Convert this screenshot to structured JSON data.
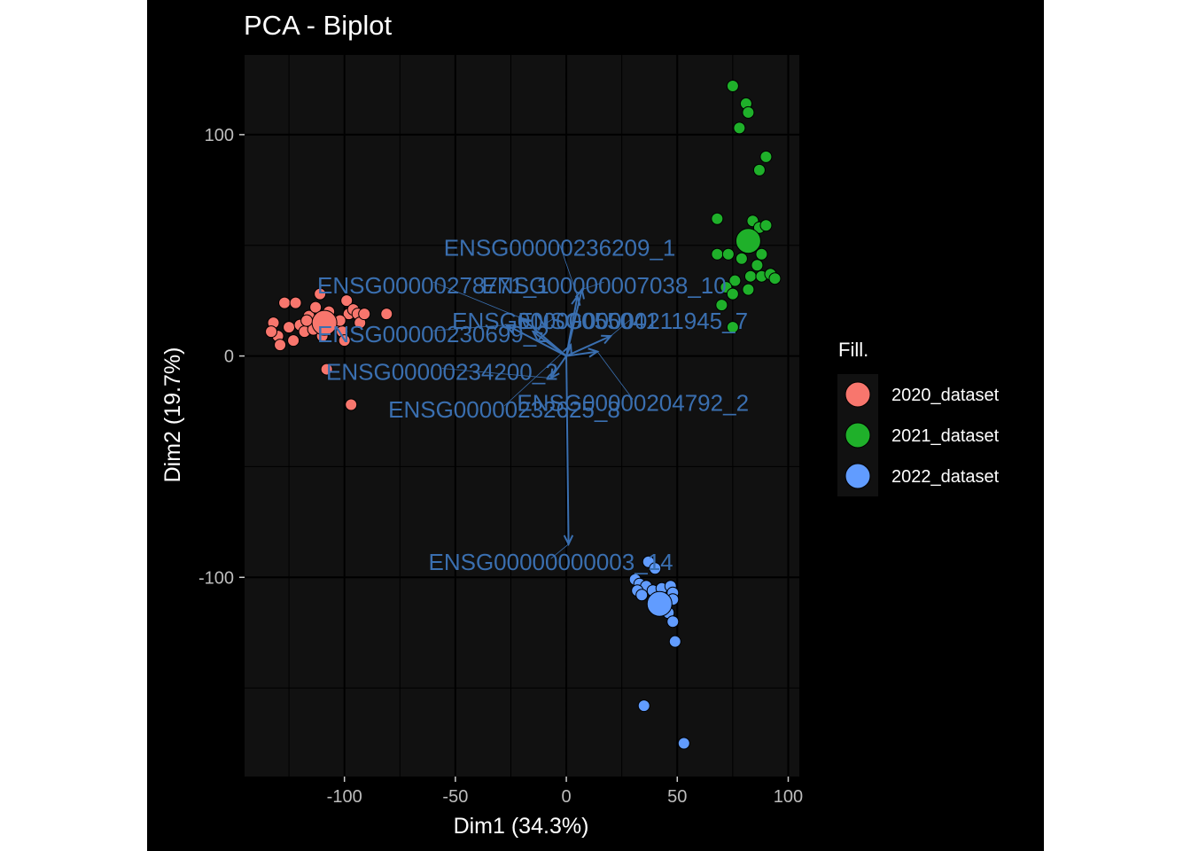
{
  "chart_data": {
    "type": "scatter",
    "title": "PCA - Biplot",
    "xlabel": "Dim1 (34.3%)",
    "ylabel": "Dim2 (19.7%)",
    "xlim": [
      -145,
      105
    ],
    "ylim": [
      -190,
      136
    ],
    "x_ticks": [
      -100,
      -50,
      0,
      50,
      100
    ],
    "x_tick_labels": [
      "-100",
      "-50",
      "0",
      "50",
      "100"
    ],
    "y_ticks": [
      -100,
      0,
      100
    ],
    "y_tick_labels": [
      "-100",
      "0",
      "100"
    ],
    "grid": true,
    "legend": {
      "title": "Fill.",
      "placement": "right",
      "entries": [
        "2020_dataset",
        "2021_dataset",
        "2022_dataset"
      ]
    },
    "colors": {
      "2020_dataset": "#F8766D",
      "2021_dataset": "#1FB02A",
      "2022_dataset": "#619CFF",
      "arrow": "#3A6FB0",
      "panel": "#111111",
      "grid": "#000000"
    },
    "series": [
      {
        "name": "2020_dataset",
        "points": [
          [
            -132,
            15
          ],
          [
            -130,
            9
          ],
          [
            -133,
            11
          ],
          [
            -127,
            24
          ],
          [
            -122,
            24
          ],
          [
            -125,
            13
          ],
          [
            -120,
            14
          ],
          [
            -118,
            11
          ],
          [
            -116,
            18
          ],
          [
            -113,
            22
          ],
          [
            -111,
            28
          ],
          [
            -107,
            20
          ],
          [
            -105,
            16
          ],
          [
            -103,
            14
          ],
          [
            -101,
            11
          ],
          [
            -99,
            25
          ],
          [
            -98,
            19
          ],
          [
            -96,
            21
          ],
          [
            -94,
            19
          ],
          [
            -93,
            15
          ],
          [
            -91,
            19
          ],
          [
            -81,
            19
          ],
          [
            -110,
            9
          ],
          [
            -114,
            12
          ],
          [
            -117,
            16
          ],
          [
            -129,
            5
          ],
          [
            -123,
            7
          ],
          [
            -108,
            -6
          ],
          [
            -97,
            -22
          ],
          [
            -102,
            16
          ],
          [
            -100,
            7
          ]
        ],
        "centroid": [
          -109,
          15
        ]
      },
      {
        "name": "2021_dataset",
        "points": [
          [
            75,
            122
          ],
          [
            81,
            114
          ],
          [
            82,
            110
          ],
          [
            78,
            103
          ],
          [
            90,
            90
          ],
          [
            87,
            84
          ],
          [
            68,
            62
          ],
          [
            84,
            61
          ],
          [
            87,
            58
          ],
          [
            90,
            59
          ],
          [
            68,
            46
          ],
          [
            73,
            46
          ],
          [
            79,
            44
          ],
          [
            88,
            46
          ],
          [
            86,
            41
          ],
          [
            83,
            36
          ],
          [
            88,
            36
          ],
          [
            92,
            37
          ],
          [
            94,
            35
          ],
          [
            76,
            34
          ],
          [
            72,
            31
          ],
          [
            82,
            30
          ],
          [
            75,
            28
          ],
          [
            70,
            23
          ],
          [
            75,
            13
          ]
        ],
        "centroid": [
          82,
          52
        ]
      },
      {
        "name": "2022_dataset",
        "points": [
          [
            37,
            -93
          ],
          [
            40,
            -96
          ],
          [
            31,
            -101
          ],
          [
            33,
            -103
          ],
          [
            36,
            -104
          ],
          [
            39,
            -106
          ],
          [
            43,
            -105
          ],
          [
            47,
            -104
          ],
          [
            48,
            -107
          ],
          [
            32,
            -106
          ],
          [
            34,
            -108
          ],
          [
            45,
            -111
          ],
          [
            46,
            -116
          ],
          [
            48,
            -120
          ],
          [
            49,
            -129
          ],
          [
            35,
            -158
          ],
          [
            53,
            -175
          ],
          [
            48,
            -110
          ]
        ],
        "centroid": [
          42,
          -112
        ]
      }
    ],
    "arrows": [
      {
        "label": "ENSG00000236209_1",
        "x": 5,
        "y": 27,
        "label_x": -3,
        "label_y": 48
      },
      {
        "label": "ENSG00000278771_1",
        "x": -20,
        "y": 17,
        "label_x": -60,
        "label_y": 31
      },
      {
        "label": "ENSG00000007038_10",
        "x": 7,
        "y": 30,
        "label_x": 17,
        "label_y": 31
      },
      {
        "label": "ENSG00000230699_2",
        "x": -27,
        "y": 14,
        "label_x": -60,
        "label_y": 9
      },
      {
        "label": "ENSG00000211945_7",
        "x": 20,
        "y": 9,
        "label_x": 30,
        "label_y": 15
      },
      {
        "label": "ENSG00000055041",
        "x": -15,
        "y": 11,
        "label_x": -5,
        "label_y": 15
      },
      {
        "label": "ENSG00000234200_2",
        "x": -7,
        "y": -10,
        "label_x": -56,
        "label_y": -8
      },
      {
        "label": "ENSG00000232625_8",
        "x": 2,
        "y": 5,
        "label_x": -28,
        "label_y": -25
      },
      {
        "label": "ENSG00000204792_2",
        "x": 14,
        "y": 2,
        "label_x": 30,
        "label_y": -22
      },
      {
        "label": "ENSG00000000003_14",
        "x": 1,
        "y": -85,
        "label_x": -7,
        "label_y": -94
      }
    ]
  }
}
